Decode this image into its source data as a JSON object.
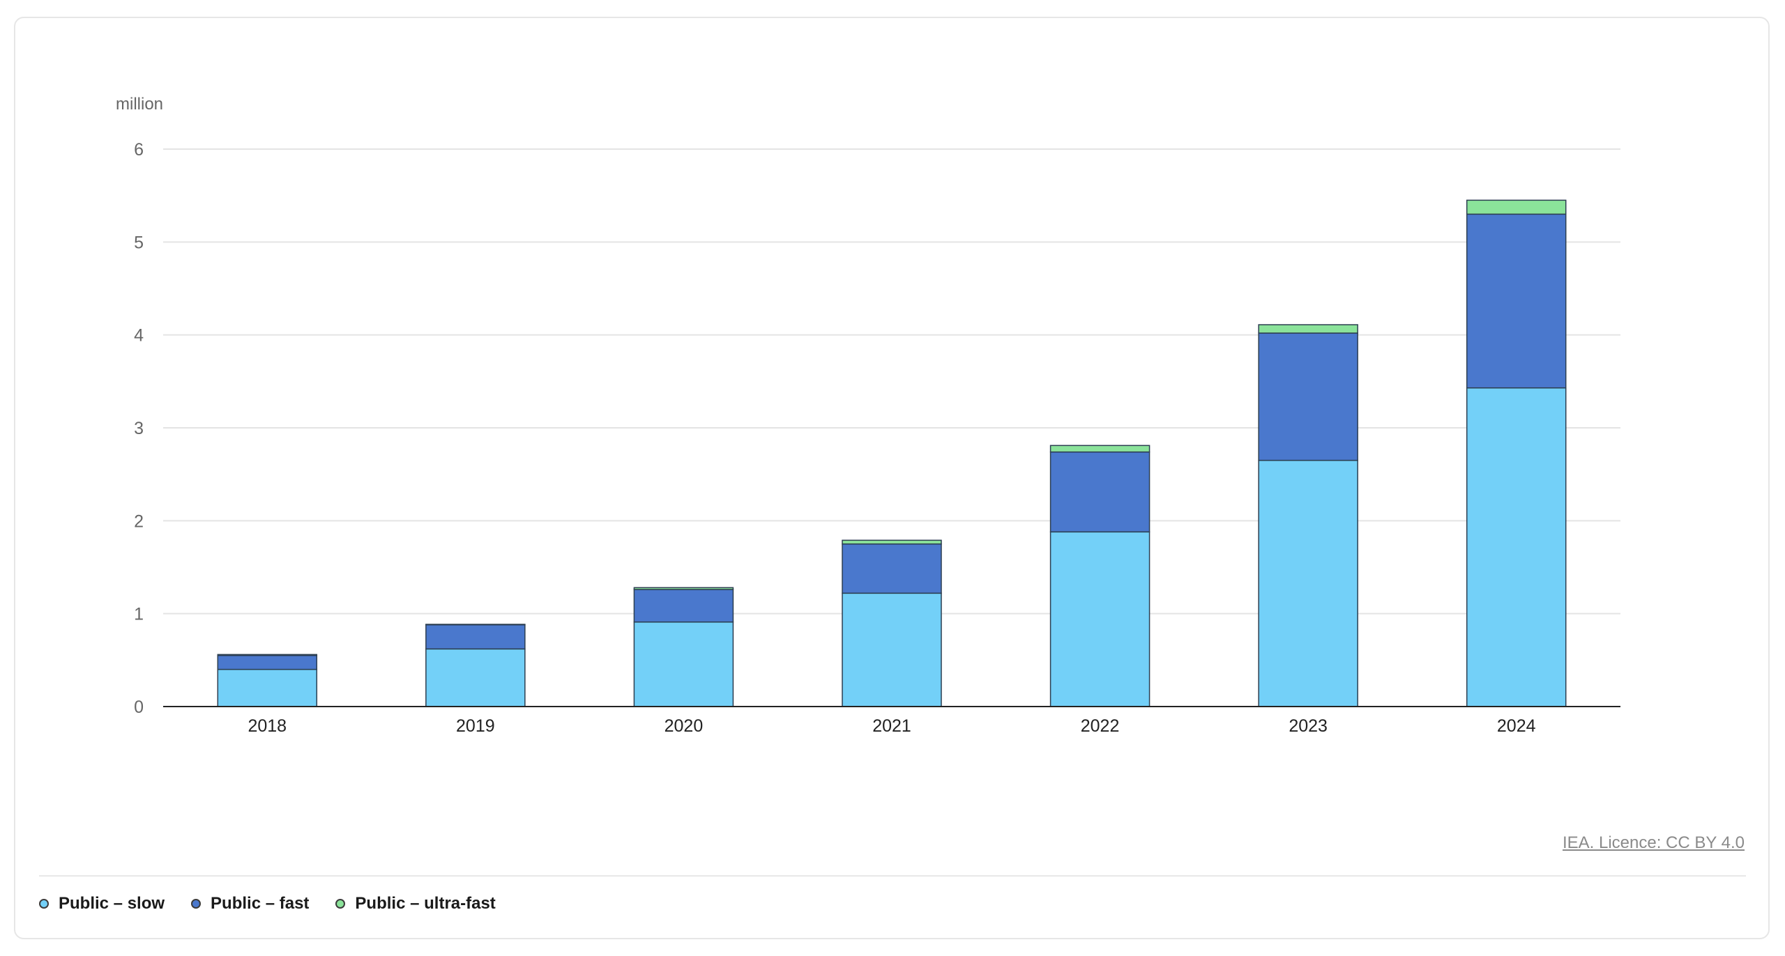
{
  "chart_data": {
    "type": "bar",
    "stacked": true,
    "ylabel": "million",
    "ylim": [
      0,
      6
    ],
    "yticks": [
      0,
      1,
      2,
      3,
      4,
      5,
      6
    ],
    "grid": true,
    "legend_position": "bottom-left",
    "categories": [
      "2018",
      "2019",
      "2020",
      "2021",
      "2022",
      "2023",
      "2024"
    ],
    "series": [
      {
        "name": "Public – slow",
        "color": "#73d0f8",
        "values": [
          0.4,
          0.62,
          0.91,
          1.22,
          1.88,
          2.65,
          3.43
        ]
      },
      {
        "name": "Public – fast",
        "color": "#4a78cd",
        "values": [
          0.15,
          0.26,
          0.35,
          0.53,
          0.86,
          1.37,
          1.87
        ]
      },
      {
        "name": "Public – ultra-fast",
        "color": "#8be39a",
        "values": [
          0.01,
          0.005,
          0.02,
          0.04,
          0.07,
          0.09,
          0.15
        ]
      }
    ]
  },
  "credit": "IEA. Licence: CC BY 4.0"
}
